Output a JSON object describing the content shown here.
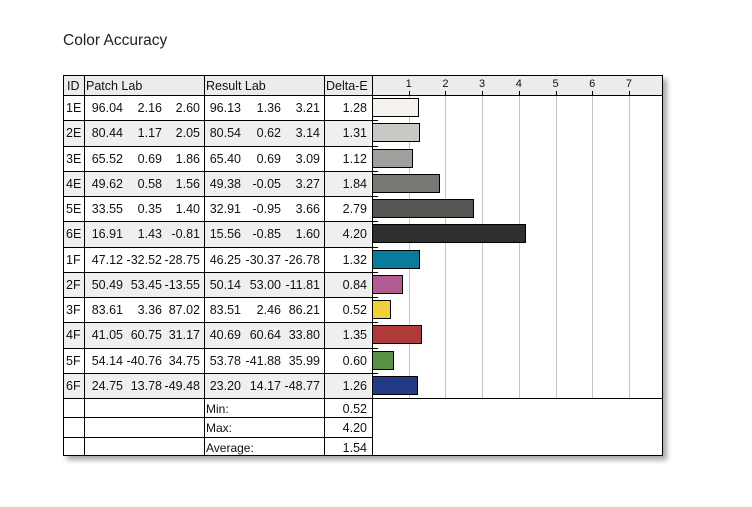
{
  "title": "Color Accuracy",
  "table": {
    "headers": {
      "id": "ID",
      "patch": "Patch Lab",
      "result": "Result Lab",
      "delta": "Delta-E"
    },
    "rows": [
      {
        "id": "1E",
        "patch": [
          "96.04",
          "2.16",
          "2.60"
        ],
        "result": [
          "96.13",
          "1.36",
          "3.21"
        ],
        "delta": "1.28",
        "color": "#f5f2ee"
      },
      {
        "id": "2E",
        "patch": [
          "80.44",
          "1.17",
          "2.05"
        ],
        "result": [
          "80.54",
          "0.62",
          "3.14"
        ],
        "delta": "1.31",
        "color": "#c9c8c4"
      },
      {
        "id": "3E",
        "patch": [
          "65.52",
          "0.69",
          "1.86"
        ],
        "result": [
          "65.40",
          "0.69",
          "3.09"
        ],
        "delta": "1.12",
        "color": "#a19f9b"
      },
      {
        "id": "4E",
        "patch": [
          "49.62",
          "0.58",
          "1.56"
        ],
        "result": [
          "49.38",
          "-0.05",
          "3.27"
        ],
        "delta": "1.84",
        "color": "#787773"
      },
      {
        "id": "5E",
        "patch": [
          "33.55",
          "0.35",
          "1.40"
        ],
        "result": [
          "32.91",
          "-0.95",
          "3.66"
        ],
        "delta": "2.79",
        "color": "#555651"
      },
      {
        "id": "6E",
        "patch": [
          "16.91",
          "1.43",
          "-0.81"
        ],
        "result": [
          "15.56",
          "-0.85",
          "1.60"
        ],
        "delta": "4.20",
        "color": "#2f2f2f"
      },
      {
        "id": "1F",
        "patch": [
          "47.12",
          "-32.52",
          "-28.75"
        ],
        "result": [
          "46.25",
          "-30.37",
          "-26.78"
        ],
        "delta": "1.32",
        "color": "#0a7c9b"
      },
      {
        "id": "2F",
        "patch": [
          "50.49",
          "53.45",
          "-13.55"
        ],
        "result": [
          "50.14",
          "53.00",
          "-11.81"
        ],
        "delta": "0.84",
        "color": "#b35a91"
      },
      {
        "id": "3F",
        "patch": [
          "83.61",
          "3.36",
          "87.02"
        ],
        "result": [
          "83.51",
          "2.46",
          "86.21"
        ],
        "delta": "0.52",
        "color": "#f0d13b"
      },
      {
        "id": "4F",
        "patch": [
          "41.05",
          "60.75",
          "31.17"
        ],
        "result": [
          "40.69",
          "60.64",
          "33.80"
        ],
        "delta": "1.35",
        "color": "#b03a3a"
      },
      {
        "id": "5F",
        "patch": [
          "54.14",
          "-40.76",
          "34.75"
        ],
        "result": [
          "53.78",
          "-41.88",
          "35.99"
        ],
        "delta": "0.60",
        "color": "#5a9148"
      },
      {
        "id": "6F",
        "patch": [
          "24.75",
          "13.78",
          "-49.48"
        ],
        "result": [
          "23.20",
          "14.17",
          "-48.77"
        ],
        "delta": "1.26",
        "color": "#223b86"
      }
    ],
    "summary": [
      {
        "label": "Min:",
        "value": "0.52"
      },
      {
        "label": "Max:",
        "value": "4.20"
      },
      {
        "label": "Average:",
        "value": "1.54"
      }
    ]
  },
  "chart_data": {
    "type": "bar",
    "orientation": "horizontal",
    "title": "Color Accuracy",
    "xlabel": "Delta-E",
    "ylabel": "",
    "categories": [
      "1E",
      "2E",
      "3E",
      "4E",
      "5E",
      "6E",
      "1F",
      "2F",
      "3F",
      "4F",
      "5F",
      "6F"
    ],
    "values": [
      1.28,
      1.31,
      1.12,
      1.84,
      2.79,
      4.2,
      1.32,
      0.84,
      0.52,
      1.35,
      0.6,
      1.26
    ],
    "colors": [
      "#f5f2ee",
      "#c9c8c4",
      "#a19f9b",
      "#787773",
      "#555651",
      "#2f2f2f",
      "#0a7c9b",
      "#b35a91",
      "#f0d13b",
      "#b03a3a",
      "#5a9148",
      "#223b86"
    ],
    "xticks": [
      "1",
      "2",
      "3",
      "4",
      "5",
      "6",
      "7"
    ],
    "xlim": [
      0,
      7.9
    ],
    "grid": true,
    "summary": {
      "min": 0.52,
      "max": 4.2,
      "average": 1.54
    }
  }
}
